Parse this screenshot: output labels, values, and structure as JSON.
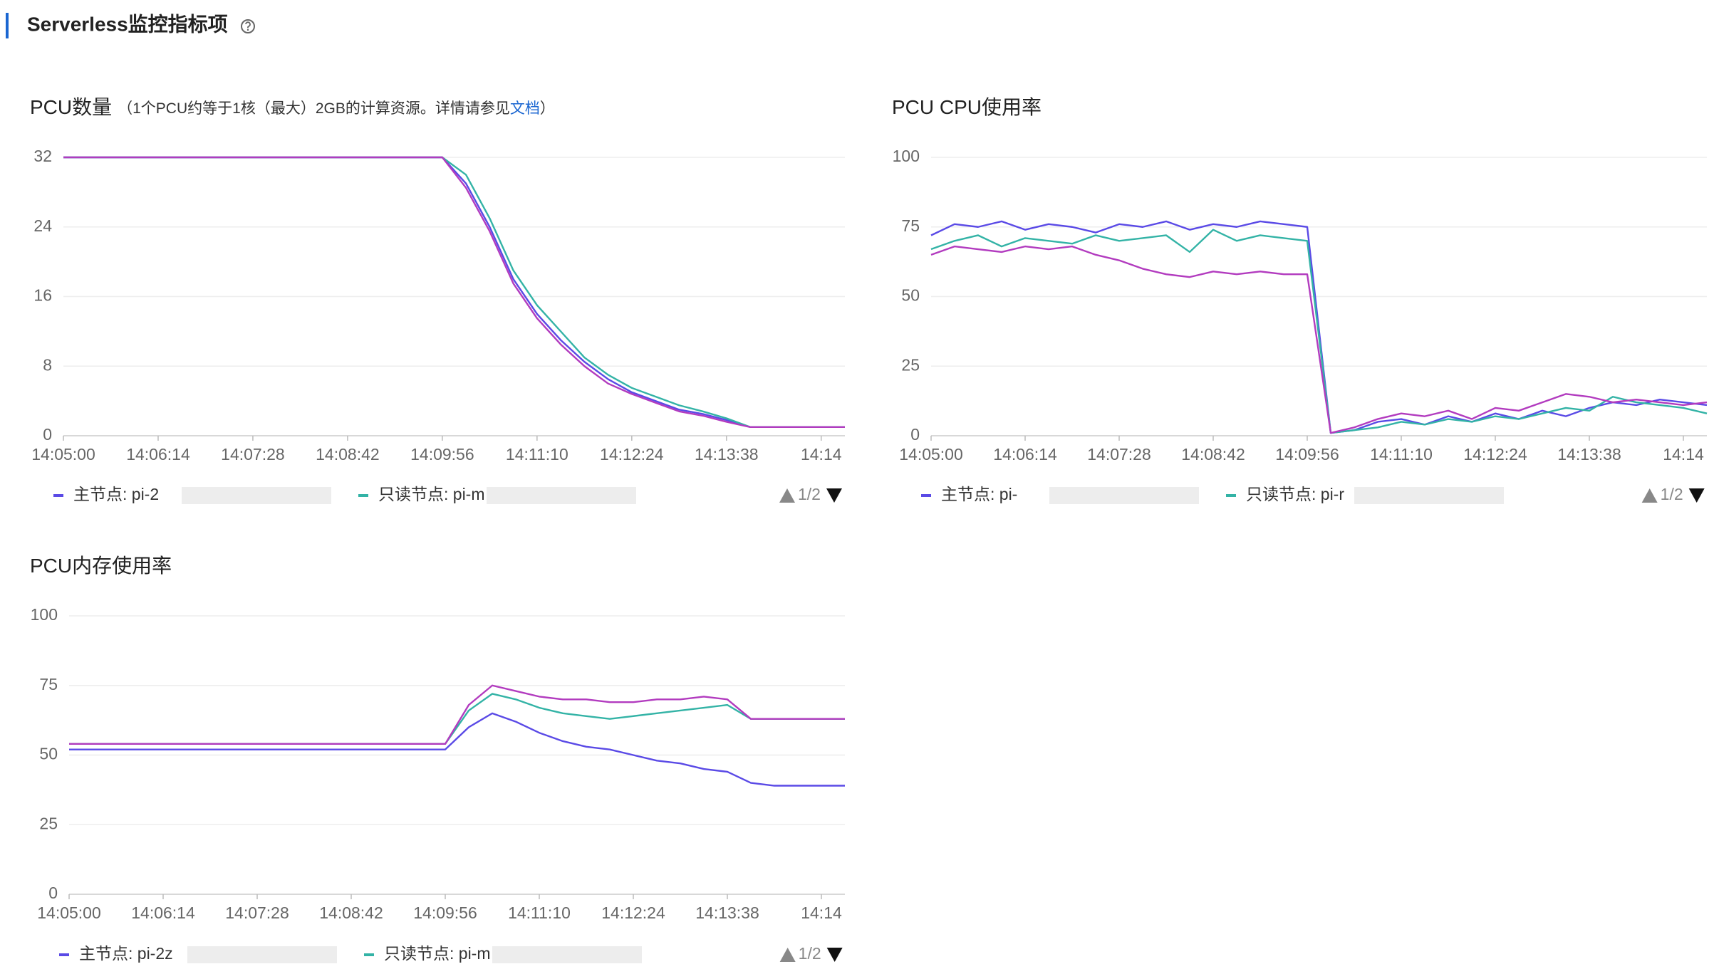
{
  "header": {
    "title": "Serverless监控指标项"
  },
  "chart_data": [
    {
      "type": "line",
      "title": "PCU数量",
      "subtitle": "（1个PCU约等于1核（最大）2GB的计算资源。详情请参见",
      "subtitle_link": "文档",
      "subtitle_end": "）",
      "categories": [
        "14:05:00",
        null,
        null,
        null,
        "14:06:14",
        null,
        null,
        null,
        "14:07:28",
        null,
        null,
        null,
        "14:08:42",
        null,
        null,
        null,
        "14:09:56",
        null,
        null,
        null,
        "14:11:10",
        null,
        null,
        null,
        "14:12:24",
        null,
        null,
        null,
        "14:13:38",
        null,
        null,
        null,
        "14:14",
        null
      ],
      "series": [
        {
          "name": "主节点: pi-2",
          "color": "#5a4ae6",
          "values": [
            32,
            32,
            32,
            32,
            32,
            32,
            32,
            32,
            32,
            32,
            32,
            32,
            32,
            32,
            32,
            32,
            32,
            29,
            24,
            18,
            14,
            11,
            8.5,
            6.5,
            5,
            4,
            3,
            2.5,
            1.8,
            1,
            1,
            1,
            1,
            1
          ]
        },
        {
          "name": "只读节点: pi-m",
          "color": "#33b3a6",
          "values": [
            32,
            32,
            32,
            32,
            32,
            32,
            32,
            32,
            32,
            32,
            32,
            32,
            32,
            32,
            32,
            32,
            32,
            30,
            25,
            19,
            15,
            12,
            9,
            7,
            5.5,
            4.5,
            3.5,
            2.8,
            2,
            1,
            1,
            1,
            1,
            1
          ]
        },
        {
          "color": "#b23bbf",
          "values": [
            32,
            32,
            32,
            32,
            32,
            32,
            32,
            32,
            32,
            32,
            32,
            32,
            32,
            32,
            32,
            32,
            32,
            28.5,
            23.5,
            17.5,
            13.5,
            10.5,
            8,
            6,
            4.8,
            3.8,
            2.8,
            2.3,
            1.6,
            1,
            1,
            1,
            1,
            1
          ]
        }
      ],
      "ylim": [
        0,
        32
      ],
      "yticks": [
        0,
        8,
        16,
        24,
        32
      ],
      "grid": true,
      "legend_pager": "1/2"
    },
    {
      "type": "line",
      "title": "PCU CPU使用率",
      "categories": [
        "14:05:00",
        null,
        null,
        null,
        "14:06:14",
        null,
        null,
        null,
        "14:07:28",
        null,
        null,
        null,
        "14:08:42",
        null,
        null,
        null,
        "14:09:56",
        null,
        null,
        null,
        "14:11:10",
        null,
        null,
        null,
        "14:12:24",
        null,
        null,
        null,
        "14:13:38",
        null,
        null,
        null,
        "14:14",
        null
      ],
      "series": [
        {
          "name": "主节点: pi-",
          "color": "#5a4ae6",
          "values": [
            72,
            76,
            75,
            77,
            74,
            76,
            75,
            73,
            76,
            75,
            77,
            74,
            76,
            75,
            77,
            76,
            75,
            1,
            2,
            5,
            6,
            4,
            7,
            5,
            8,
            6,
            9,
            7,
            10,
            12,
            11,
            13,
            12,
            11
          ]
        },
        {
          "name": "只读节点: pi-r",
          "color": "#33b3a6",
          "values": [
            67,
            70,
            72,
            68,
            71,
            70,
            69,
            72,
            70,
            71,
            72,
            66,
            74,
            70,
            72,
            71,
            70,
            1,
            2,
            3,
            5,
            4,
            6,
            5,
            7,
            6,
            8,
            10,
            9,
            14,
            12,
            11,
            10,
            8
          ]
        },
        {
          "color": "#b23bbf",
          "values": [
            65,
            68,
            67,
            66,
            68,
            67,
            68,
            65,
            63,
            60,
            58,
            57,
            59,
            58,
            59,
            58,
            58,
            1,
            3,
            6,
            8,
            7,
            9,
            6,
            10,
            9,
            12,
            15,
            14,
            12,
            13,
            12,
            11,
            12
          ]
        }
      ],
      "ylim": [
        0,
        100
      ],
      "yticks": [
        0,
        25,
        50,
        75,
        100
      ],
      "grid": true,
      "legend_pager": "1/2"
    },
    {
      "type": "line",
      "title": "PCU内存使用率",
      "categories": [
        "14:05:00",
        null,
        null,
        null,
        "14:06:14",
        null,
        null,
        null,
        "14:07:28",
        null,
        null,
        null,
        "14:08:42",
        null,
        null,
        null,
        "14:09:56",
        null,
        null,
        null,
        "14:11:10",
        null,
        null,
        null,
        "14:12:24",
        null,
        null,
        null,
        "14:13:38",
        null,
        null,
        null,
        "14:14",
        null
      ],
      "series": [
        {
          "name": "主节点: pi-2z",
          "color": "#5a4ae6",
          "values": [
            52,
            52,
            52,
            52,
            52,
            52,
            52,
            52,
            52,
            52,
            52,
            52,
            52,
            52,
            52,
            52,
            52,
            60,
            65,
            62,
            58,
            55,
            53,
            52,
            50,
            48,
            47,
            45,
            44,
            40,
            39,
            39,
            39,
            39
          ]
        },
        {
          "name": "只读节点: pi-m",
          "color": "#33b3a6",
          "values": [
            54,
            54,
            54,
            54,
            54,
            54,
            54,
            54,
            54,
            54,
            54,
            54,
            54,
            54,
            54,
            54,
            54,
            66,
            72,
            70,
            67,
            65,
            64,
            63,
            64,
            65,
            66,
            67,
            68,
            63,
            63,
            63,
            63,
            63
          ]
        },
        {
          "color": "#b23bbf",
          "values": [
            54,
            54,
            54,
            54,
            54,
            54,
            54,
            54,
            54,
            54,
            54,
            54,
            54,
            54,
            54,
            54,
            54,
            68,
            75,
            73,
            71,
            70,
            70,
            69,
            69,
            70,
            70,
            71,
            70,
            63,
            63,
            63,
            63,
            63
          ]
        }
      ],
      "ylim": [
        0,
        100
      ],
      "yticks": [
        0,
        25,
        50,
        75,
        100
      ],
      "grid": true,
      "legend_pager": "1/2"
    }
  ]
}
